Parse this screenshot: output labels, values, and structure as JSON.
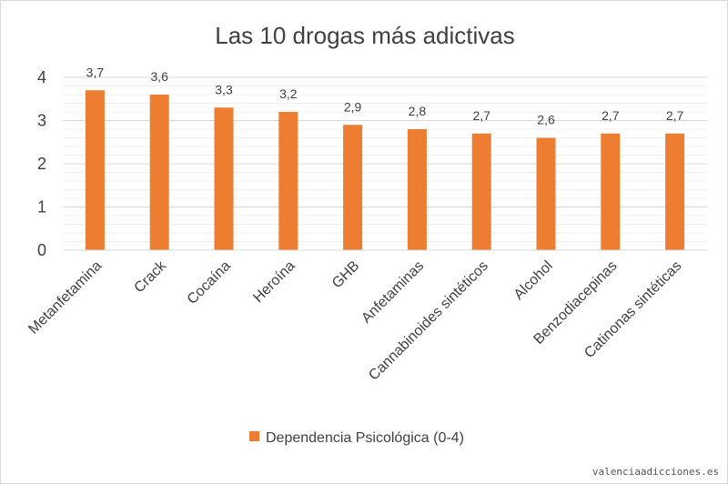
{
  "chart_data": {
    "type": "bar",
    "title": "Las 10 drogas más adictivas",
    "categories": [
      "Metanfetamina",
      "Crack",
      "Cocaína",
      "Heroína",
      "GHB",
      "Anfetaminas",
      "Cannabinoides sintéticos",
      "Alcohol",
      "Benzodiacepinas",
      "Catinonas sintéticas"
    ],
    "series": [
      {
        "name": "Dependencia Psicológica (0-4)",
        "values": [
          3.7,
          3.6,
          3.3,
          3.2,
          2.9,
          2.8,
          2.7,
          2.6,
          2.7,
          2.7
        ],
        "labels": [
          "3,7",
          "3,6",
          "3,3",
          "3,2",
          "2,9",
          "2,8",
          "2,7",
          "2,6",
          "2,7",
          "2,7"
        ],
        "color": "#ED7D31"
      }
    ],
    "yticks": [
      0,
      1,
      2,
      3,
      4
    ],
    "ylim": [
      0,
      4
    ],
    "grid": true,
    "legend_position": "bottom"
  },
  "watermark": "valenciaadicciones.es"
}
